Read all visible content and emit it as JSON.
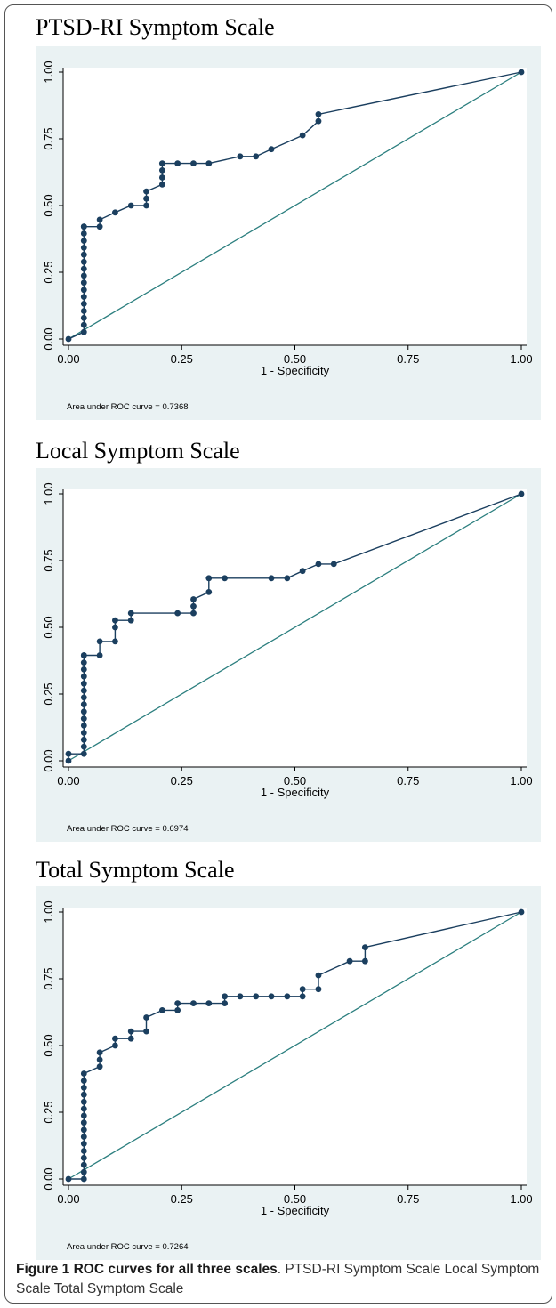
{
  "colors": {
    "plot_background": "#eaf2f3",
    "curve": "#1b3f5f",
    "reference_line": "#2c7f7f",
    "axis": "#000000"
  },
  "chart_data": [
    {
      "type": "line",
      "title": "PTSD-RI Symptom Scale",
      "xlabel": "1 - Specificity",
      "ylabel": "",
      "xlim": [
        0,
        1
      ],
      "ylim": [
        0,
        1
      ],
      "xticks": [
        "0.00",
        "0.25",
        "0.50",
        "0.75",
        "1.00"
      ],
      "yticks": [
        "0.00",
        "0.25",
        "0.50",
        "0.75",
        "1.00"
      ],
      "grid": false,
      "note": "Area under ROC curve = 0.7368",
      "series": [
        {
          "x": [
            0,
            0.034,
            0.034,
            0.034,
            0.034,
            0.034,
            0.034,
            0.034,
            0.034,
            0.034,
            0.034,
            0.034,
            0.034,
            0.034,
            0.034,
            0.034,
            0.034,
            0.034,
            0.069,
            0.069,
            0.103,
            0.138,
            0.172,
            0.172,
            0.172,
            0.207,
            0.207,
            0.207,
            0.207,
            0.241,
            0.276,
            0.31,
            0.379,
            0.414,
            0.448,
            0.517,
            0.552,
            0.552,
            1.0
          ],
          "y": [
            0,
            0.026,
            0.053,
            0.079,
            0.105,
            0.132,
            0.158,
            0.184,
            0.211,
            0.237,
            0.263,
            0.289,
            0.316,
            0.342,
            0.368,
            0.395,
            0.421,
            0.421,
            0.421,
            0.447,
            0.474,
            0.5,
            0.5,
            0.526,
            0.553,
            0.579,
            0.605,
            0.632,
            0.658,
            0.658,
            0.658,
            0.658,
            0.684,
            0.684,
            0.711,
            0.763,
            0.816,
            0.842,
            1.0
          ]
        },
        {
          "x": [
            0,
            1
          ],
          "y": [
            0,
            1
          ]
        }
      ]
    },
    {
      "type": "line",
      "title": "Local Symptom Scale",
      "xlabel": "1 - Specificity",
      "ylabel": "",
      "xlim": [
        0,
        1
      ],
      "ylim": [
        0,
        1
      ],
      "xticks": [
        "0.00",
        "0.25",
        "0.50",
        "0.75",
        "1.00"
      ],
      "yticks": [
        "0.00",
        "0.25",
        "0.50",
        "0.75",
        "1.00"
      ],
      "grid": false,
      "note": "Area under ROC curve = 0.6974",
      "series": [
        {
          "x": [
            0,
            0,
            0.034,
            0.034,
            0.034,
            0.034,
            0.034,
            0.034,
            0.034,
            0.034,
            0.034,
            0.034,
            0.034,
            0.034,
            0.034,
            0.034,
            0.034,
            0.034,
            0.069,
            0.069,
            0.103,
            0.103,
            0.103,
            0.138,
            0.138,
            0.241,
            0.276,
            0.276,
            0.276,
            0.31,
            0.31,
            0.345,
            0.448,
            0.483,
            0.517,
            0.552,
            0.586,
            1.0
          ],
          "y": [
            0,
            0.026,
            0.026,
            0.053,
            0.079,
            0.105,
            0.132,
            0.158,
            0.184,
            0.211,
            0.237,
            0.263,
            0.289,
            0.316,
            0.342,
            0.368,
            0.395,
            0.395,
            0.395,
            0.447,
            0.447,
            0.5,
            0.526,
            0.526,
            0.553,
            0.553,
            0.553,
            0.579,
            0.605,
            0.632,
            0.684,
            0.684,
            0.684,
            0.684,
            0.711,
            0.737,
            0.737,
            1.0
          ]
        },
        {
          "x": [
            0,
            1
          ],
          "y": [
            0,
            1
          ]
        }
      ]
    },
    {
      "type": "line",
      "title": "Total Symptom Scale",
      "xlabel": "1 - Specificity",
      "ylabel": "",
      "xlim": [
        0,
        1
      ],
      "ylim": [
        0,
        1
      ],
      "xticks": [
        "0.00",
        "0.25",
        "0.50",
        "0.75",
        "1.00"
      ],
      "yticks": [
        "0.00",
        "0.25",
        "0.50",
        "0.75",
        "1.00"
      ],
      "grid": false,
      "note": "Area under ROC curve = 0.7264",
      "series": [
        {
          "x": [
            0,
            0.034,
            0.034,
            0.034,
            0.034,
            0.034,
            0.034,
            0.034,
            0.034,
            0.034,
            0.034,
            0.034,
            0.034,
            0.034,
            0.034,
            0.034,
            0.034,
            0.069,
            0.069,
            0.069,
            0.103,
            0.103,
            0.138,
            0.138,
            0.172,
            0.172,
            0.207,
            0.241,
            0.241,
            0.276,
            0.31,
            0.345,
            0.345,
            0.379,
            0.414,
            0.448,
            0.483,
            0.517,
            0.517,
            0.552,
            0.552,
            0.621,
            0.655,
            0.655,
            1.0
          ],
          "y": [
            0,
            0,
            0.026,
            0.053,
            0.079,
            0.105,
            0.132,
            0.158,
            0.184,
            0.211,
            0.237,
            0.263,
            0.289,
            0.316,
            0.342,
            0.368,
            0.395,
            0.421,
            0.447,
            0.474,
            0.5,
            0.526,
            0.526,
            0.553,
            0.553,
            0.605,
            0.632,
            0.632,
            0.658,
            0.658,
            0.658,
            0.658,
            0.684,
            0.684,
            0.684,
            0.684,
            0.684,
            0.684,
            0.711,
            0.711,
            0.763,
            0.816,
            0.816,
            0.868,
            1.0
          ]
        },
        {
          "x": [
            0,
            1
          ],
          "y": [
            0,
            1
          ]
        }
      ]
    }
  ],
  "caption": {
    "bold": "Figure 1 ROC curves for all three scales",
    "rest": ". PTSD-RI Symptom Scale Local Symptom Scale Total Symptom Scale"
  }
}
